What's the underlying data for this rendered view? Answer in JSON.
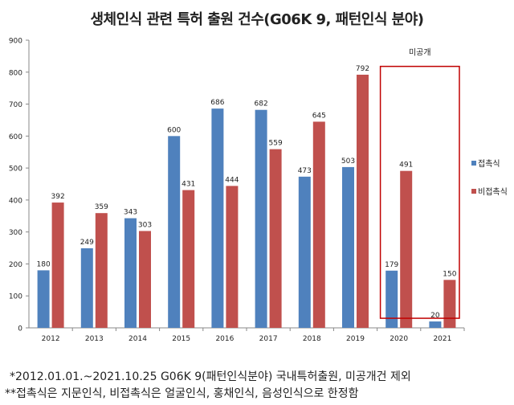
{
  "chart_data": {
    "type": "bar",
    "title": "생체인식 관련 특허 출원 건수(G06K 9, 패턴인식 분야)",
    "categories": [
      "2012",
      "2013",
      "2014",
      "2015",
      "2016",
      "2017",
      "2018",
      "2019",
      "2020",
      "2021"
    ],
    "series": [
      {
        "name": "접촉식",
        "color": "#4F81BD",
        "values": [
          180,
          249,
          343,
          600,
          686,
          682,
          473,
          503,
          179,
          20
        ]
      },
      {
        "name": "비접촉식",
        "color": "#C0504D",
        "values": [
          392,
          359,
          303,
          431,
          444,
          559,
          645,
          792,
          491,
          150
        ]
      }
    ],
    "ylim": [
      0,
      900
    ],
    "yticks": [
      0,
      100,
      200,
      300,
      400,
      500,
      600,
      700,
      800,
      900
    ],
    "grid": false,
    "legend": "right",
    "annotation": {
      "label": "미공개",
      "categories": [
        "2020",
        "2021"
      ],
      "color": "#C00000"
    }
  },
  "notes": [
    "*2012.01.01.~2021.10.25 G06K 9(패턴인식분야) 국내특허출원, 미공개건 제외",
    "**접촉식은 지문인식, 비접촉식은 얼굴인식, 홍채인식, 음성인식으로 한정함"
  ]
}
